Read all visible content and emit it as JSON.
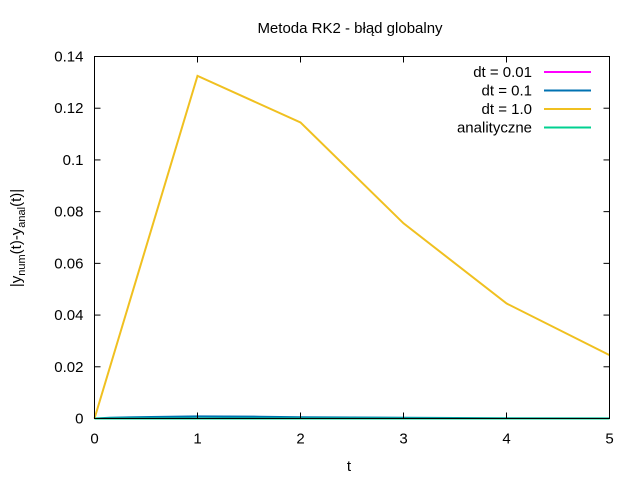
{
  "chart_data": {
    "type": "line",
    "title": "Metoda RK2 - błąd globalny",
    "xlabel": "t",
    "ylabel": {
      "prefix": "|y",
      "sub1": "num",
      "mid": "(t)-y",
      "sub2": "anal",
      "suffix": "(t)|"
    },
    "xlim": [
      0,
      5
    ],
    "ylim": [
      0,
      0.14
    ],
    "xticks": [
      "0",
      "1",
      "2",
      "3",
      "4",
      "5"
    ],
    "yticks": [
      "0",
      "0.02",
      "0.04",
      "0.06",
      "0.08",
      "0.1",
      "0.12",
      "0.14"
    ],
    "grid": false,
    "legend_position": "top-right",
    "series": [
      {
        "name": "dt = 0.01",
        "color": "#ff00ff",
        "x": [
          0,
          5
        ],
        "y": [
          0,
          0
        ]
      },
      {
        "name": "dt = 0.1",
        "color": "#0072b2",
        "x": [
          0,
          0.15,
          0.55,
          1.0,
          1.6,
          2.0,
          2.5,
          3.0,
          3.5,
          4.0,
          5.0
        ],
        "y": [
          0,
          0.0003,
          0.0006,
          0.0008,
          0.0007,
          0.0005,
          0.0004,
          0.0003,
          0.0002,
          0.0001,
          5e-05
        ]
      },
      {
        "name": "dt = 1.0",
        "color": "#f0c020",
        "x": [
          0,
          1,
          2,
          3,
          4,
          5
        ],
        "y": [
          0,
          0.1325,
          0.1145,
          0.0755,
          0.0445,
          0.0245
        ]
      },
      {
        "name": "analityczne",
        "color": "#00d090",
        "x": [
          0,
          5
        ],
        "y": [
          0,
          0
        ]
      }
    ]
  }
}
